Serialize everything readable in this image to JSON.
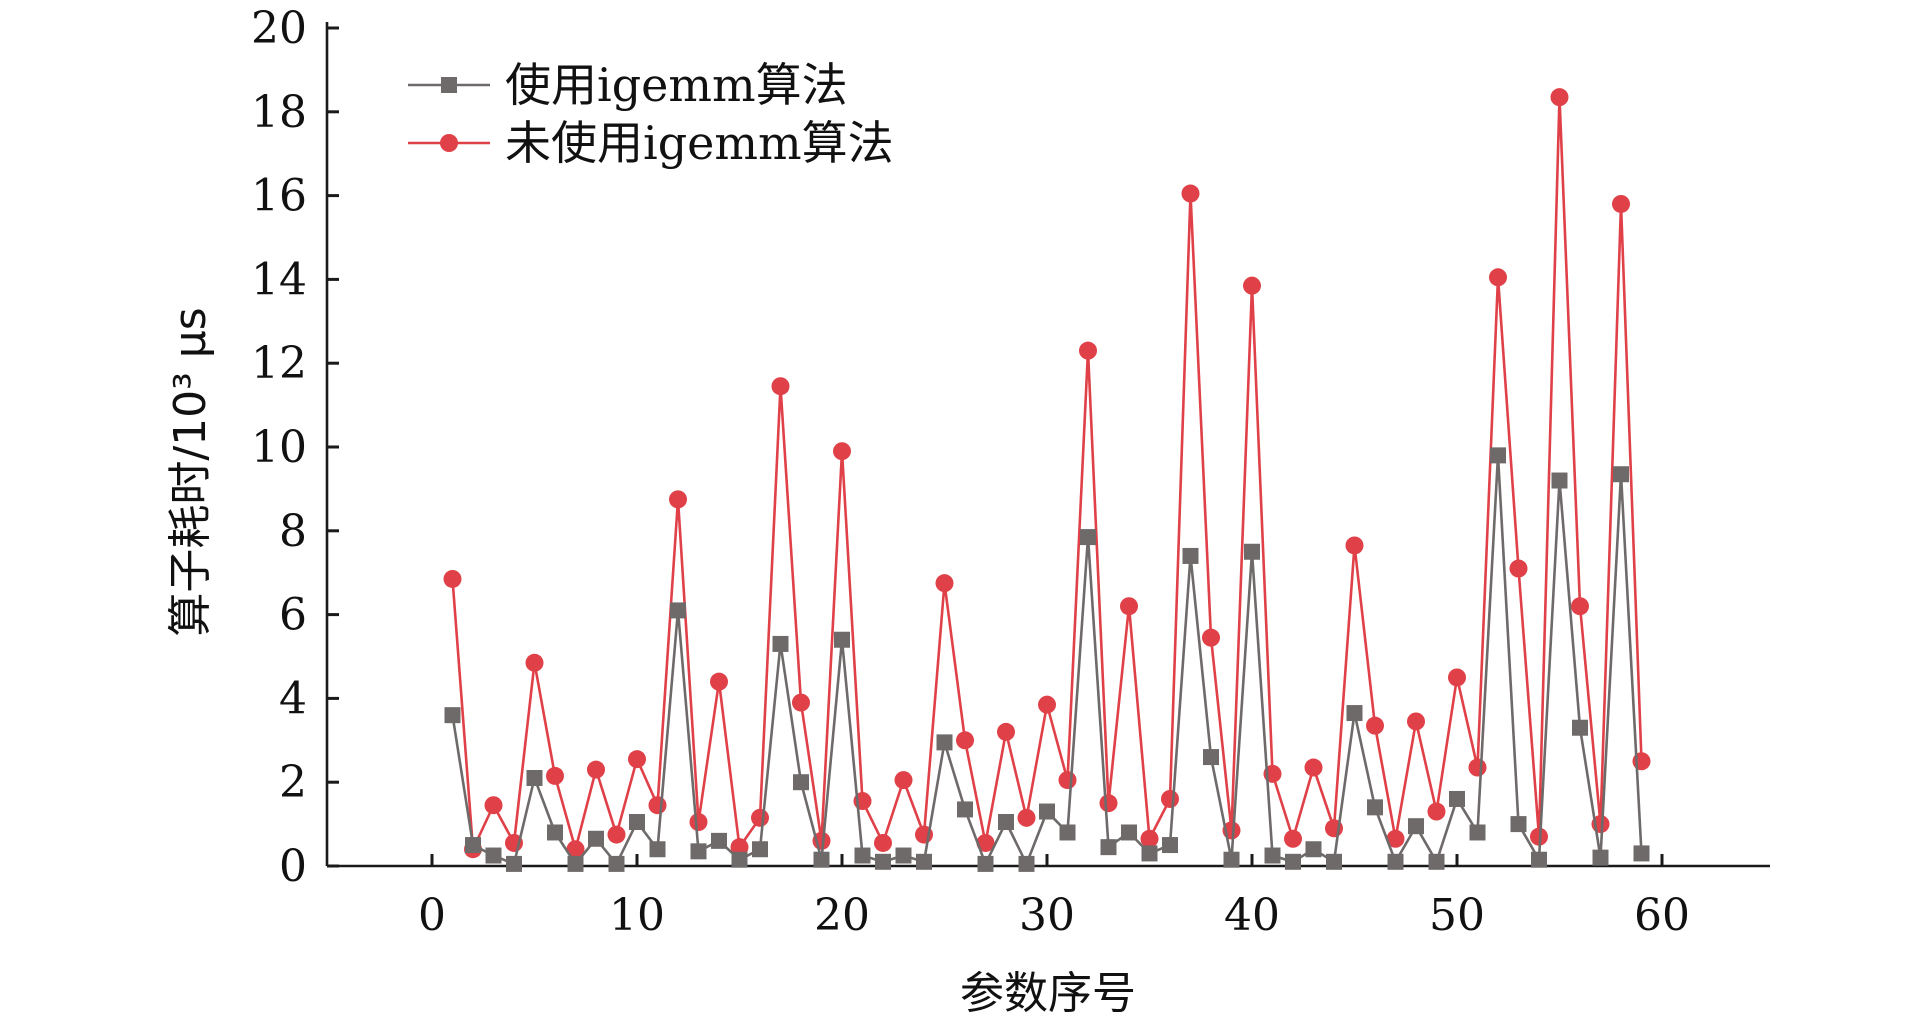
{
  "chart_data": {
    "type": "line",
    "xlabel": "参数序号",
    "ylabel": "算子耗时/10³ μs",
    "xlim": [
      -5,
      65
    ],
    "ylim": [
      0,
      20
    ],
    "xticks": [
      0,
      10,
      20,
      30,
      40,
      50,
      60
    ],
    "yticks": [
      0,
      2,
      4,
      6,
      8,
      10,
      12,
      14,
      16,
      18,
      20
    ],
    "grid": false,
    "legend_position": "top-left",
    "x": [
      1,
      2,
      3,
      4,
      5,
      6,
      7,
      8,
      9,
      10,
      11,
      12,
      13,
      14,
      15,
      16,
      17,
      18,
      19,
      20,
      21,
      22,
      23,
      24,
      25,
      26,
      27,
      28,
      29,
      30,
      31,
      32,
      33,
      34,
      35,
      36,
      37,
      38,
      39,
      40,
      41,
      42,
      43,
      44,
      45,
      46,
      47,
      48,
      49,
      50,
      51,
      52,
      53,
      54,
      55,
      56,
      57,
      58,
      59
    ],
    "series": [
      {
        "name": "使用igemm算法",
        "color": "#6e6a6a",
        "marker": "square",
        "values": [
          3.6,
          0.5,
          0.25,
          0.05,
          2.1,
          0.8,
          0.05,
          0.65,
          0.05,
          1.05,
          0.4,
          6.1,
          0.35,
          0.6,
          0.15,
          0.4,
          5.3,
          2.0,
          0.15,
          5.4,
          0.25,
          0.1,
          0.25,
          0.1,
          2.95,
          1.35,
          0.05,
          1.05,
          0.05,
          1.3,
          0.8,
          7.85,
          0.45,
          0.8,
          0.3,
          0.5,
          7.4,
          2.6,
          0.15,
          7.5,
          0.25,
          0.1,
          0.4,
          0.1,
          3.65,
          1.4,
          0.1,
          0.95,
          0.1,
          1.6,
          0.8,
          9.8,
          1.0,
          0.15,
          9.2,
          3.3,
          0.2,
          9.35,
          0.3
        ]
      },
      {
        "name": "未使用igemm算法",
        "color": "#e04048",
        "marker": "circle",
        "values": [
          6.85,
          0.4,
          1.45,
          0.55,
          4.85,
          2.15,
          0.4,
          2.3,
          0.75,
          2.55,
          1.45,
          8.75,
          1.05,
          4.4,
          0.45,
          1.15,
          11.45,
          3.9,
          0.6,
          9.9,
          1.55,
          0.55,
          2.05,
          0.75,
          6.75,
          3.0,
          0.55,
          3.2,
          1.15,
          3.85,
          2.05,
          12.3,
          1.5,
          6.2,
          0.65,
          1.6,
          16.05,
          5.45,
          0.85,
          13.85,
          2.2,
          0.65,
          2.35,
          0.9,
          7.65,
          3.35,
          0.65,
          3.45,
          1.3,
          4.5,
          2.35,
          14.05,
          7.1,
          0.7,
          18.35,
          6.2,
          1.0,
          15.8,
          2.5
        ]
      }
    ]
  }
}
